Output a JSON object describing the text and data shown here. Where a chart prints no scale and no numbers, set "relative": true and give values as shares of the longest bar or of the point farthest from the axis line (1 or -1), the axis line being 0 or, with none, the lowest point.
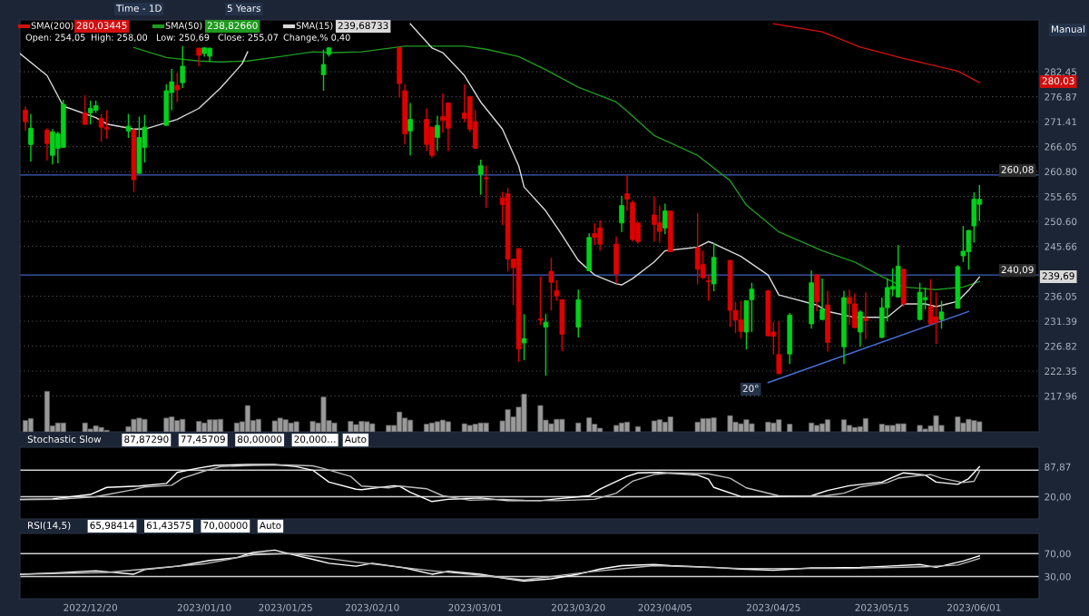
{
  "chart_data": [
    {
      "type": "candlestick",
      "log": true,
      "grid": "y",
      "legend": "top left",
      "tick_labels": "y",
      "xlim": [
        "2022-12-07",
        "2023-06-13"
      ],
      "ylim": [
        211.8,
        294.4
      ],
      "yticks": [
        282.45,
        276.87,
        271.41,
        266.05,
        {
          "value": 260.8,
          "label": "260.80"
        },
        255.65,
        {
          "value": 250.6,
          "label": "250.60"
        },
        245.66,
        236.05,
        231.39,
        226.82,
        222.35,
        217.96
      ],
      "x": [
        "2022-12-08",
        "2022-12-09",
        "2022-12-12",
        "2022-12-13",
        "2022-12-14",
        "2022-12-15",
        "2022-12-19",
        "2022-12-20",
        "2022-12-21",
        "2022-12-22",
        "2022-12-23",
        "2022-12-27",
        "2022-12-28",
        "2022-12-29",
        "2022-12-30",
        "2023-01-03",
        "2023-01-04",
        "2023-01-05",
        "2023-01-06",
        "2023-01-09",
        "2023-01-10",
        "2023-01-11",
        "2023-02-01",
        "2023-02-02",
        "2023-02-15",
        "2023-02-16",
        "2023-02-17",
        "2023-02-20",
        "2023-02-21",
        "2023-02-22",
        "2023-02-23",
        "2023-02-24",
        "2023-02-27",
        "2023-02-28",
        "2023-03-01",
        "2023-03-02",
        "2023-03-03",
        "2023-03-06",
        "2023-03-07",
        "2023-03-08",
        "2023-03-09",
        "2023-03-10",
        "2023-03-13",
        "2023-03-14",
        "2023-03-15",
        "2023-03-16",
        "2023-03-17",
        "2023-03-20",
        "2023-03-22",
        "2023-03-23",
        "2023-03-24",
        "2023-03-27",
        "2023-03-28",
        "2023-03-29",
        "2023-03-30",
        "2023-03-31",
        "2023-04-03",
        "2023-04-04",
        "2023-04-05",
        "2023-04-06",
        "2023-04-11",
        "2023-04-12",
        "2023-04-13",
        "2023-04-14",
        "2023-04-17",
        "2023-04-18",
        "2023-04-19",
        "2023-04-20",
        "2023-04-21",
        "2023-04-24",
        "2023-04-25",
        "2023-04-26",
        "2023-04-28",
        "2023-05-02",
        "2023-05-03",
        "2023-05-04",
        "2023-05-05",
        "2023-05-08",
        "2023-05-09",
        "2023-05-10",
        "2023-05-11",
        "2023-05-12",
        "2023-05-15",
        "2023-05-16",
        "2023-05-17",
        "2023-05-18",
        "2023-05-19",
        "2023-05-22",
        "2023-05-23",
        "2023-05-24",
        "2023-05-25",
        "2023-05-26",
        "2023-05-29",
        "2023-05-30",
        "2023-05-31",
        "2023-06-01",
        "2023-06-02"
      ],
      "ohlc": [
        [
          273.9,
          274.7,
          269.4,
          271.4
        ],
        [
          266.5,
          273.1,
          262.9,
          270.0
        ],
        [
          269.6,
          270.0,
          263.1,
          266.7
        ],
        [
          264.2,
          269.8,
          262.3,
          269.2
        ],
        [
          265.7,
          269.2,
          262.5,
          268.8
        ],
        [
          265.9,
          276.2,
          265.9,
          275.2
        ],
        [
          273.3,
          277.2,
          270.8,
          270.8
        ],
        [
          273.3,
          276.0,
          270.8,
          274.3
        ],
        [
          273.9,
          276.0,
          273.3,
          274.9
        ],
        [
          272.1,
          273.1,
          267.1,
          270.2
        ],
        [
          270.2,
          273.9,
          267.7,
          269.8
        ],
        [
          269.4,
          273.1,
          267.9,
          270.4
        ],
        [
          269.6,
          270.0,
          256.6,
          259.1
        ],
        [
          260.4,
          272.5,
          260.4,
          268.0
        ],
        [
          265.9,
          272.9,
          262.7,
          270.2
        ],
        [
          270.6,
          279.6,
          270.6,
          278.2
        ],
        [
          277.8,
          283.1,
          273.9,
          280.2
        ],
        [
          279.4,
          282.2,
          275.7,
          278.4
        ],
        [
          280.0,
          288.3,
          278.8,
          283.7
        ],
        [
          287.8,
          288.0,
          283.7,
          286.2
        ],
        [
          286.6,
          288.0,
          285.9,
          287.9
        ],
        [
          286.0,
          288.0,
          284.7,
          287.8
        ],
        [
          281.8,
          287.5,
          278.2,
          284.1
        ],
        [
          286.4,
          288.0,
          285.9,
          287.9
        ],
        [
          288.0,
          288.0,
          276.7,
          279.8
        ],
        [
          278.2,
          279.6,
          266.5,
          268.8
        ],
        [
          269.4,
          275.5,
          264.2,
          271.9
        ],
        [
          271.9,
          274.3,
          265.1,
          266.5
        ],
        [
          270.2,
          270.3,
          263.7,
          264.2
        ],
        [
          268.0,
          272.7,
          265.1,
          270.6
        ],
        [
          272.5,
          277.6,
          269.0,
          271.7
        ],
        [
          275.5,
          275.6,
          265.1,
          270.0
        ],
        [
          273.3,
          279.6,
          271.3,
          272.1
        ],
        [
          276.9,
          277.1,
          269.2,
          269.8
        ],
        [
          271.4,
          273.9,
          265.5,
          265.7
        ],
        [
          260.2,
          263.3,
          256.0,
          262.0
        ],
        [
          259.5,
          262.0,
          253.3,
          259.3
        ],
        [
          255.3,
          256.6,
          249.9,
          254.0
        ],
        [
          256.2,
          257.4,
          240.8,
          243.2
        ],
        [
          243.2,
          243.3,
          234.4,
          241.5
        ],
        [
          245.2,
          245.3,
          224.0,
          226.3
        ],
        [
          227.4,
          232.7,
          224.3,
          228.2
        ],
        [
          231.8,
          239.8,
          230.7,
          231.6
        ],
        [
          230.3,
          232.7,
          221.5,
          231.2
        ],
        [
          240.8,
          243.4,
          233.4,
          238.7
        ],
        [
          237.1,
          239.1,
          235.2,
          236.1
        ],
        [
          235.4,
          235.5,
          225.9,
          229.0
        ],
        [
          230.3,
          237.3,
          228.4,
          235.4
        ],
        [
          240.9,
          248.2,
          240.8,
          247.4
        ],
        [
          248.2,
          250.2,
          245.9,
          247.4
        ],
        [
          249.3,
          250.8,
          244.8,
          246.1
        ],
        [
          246.1,
          247.6,
          238.5,
          240.3
        ],
        [
          250.3,
          255.8,
          248.5,
          253.8
        ],
        [
          256.2,
          260.0,
          252.7,
          255.1
        ],
        [
          254.4,
          254.9,
          246.6,
          247.0
        ],
        [
          250.3,
          250.3,
          246.2,
          246.6
        ],
        [
          251.9,
          255.6,
          246.6,
          250.0
        ],
        [
          250.3,
          253.8,
          246.4,
          248.6
        ],
        [
          249.3,
          254.2,
          248.1,
          252.7
        ],
        [
          252.7,
          252.8,
          244.5,
          244.6
        ],
        [
          245.4,
          252.3,
          238.3,
          241.2
        ],
        [
          242.1,
          244.8,
          239.3,
          239.6
        ],
        [
          239.0,
          240.1,
          235.2,
          238.8
        ],
        [
          238.4,
          246.4,
          237.0,
          243.5
        ],
        [
          242.9,
          243.0,
          230.3,
          233.4
        ],
        [
          233.4,
          235.0,
          229.2,
          231.6
        ],
        [
          231.6,
          235.2,
          228.2,
          229.5
        ],
        [
          229.4,
          235.3,
          226.2,
          235.2
        ],
        [
          235.4,
          238.6,
          229.4,
          237.4
        ],
        [
          237.1,
          237.2,
          228.6,
          228.7
        ],
        [
          229.4,
          231.2,
          225.3,
          228.6
        ],
        [
          225.3,
          231.4,
          221.8,
          221.9
        ],
        [
          225.4,
          232.9,
          223.6,
          232.5
        ],
        [
          230.9,
          241.0,
          230.0,
          238.6
        ],
        [
          240.1,
          240.2,
          233.2,
          235.0
        ],
        [
          231.7,
          239.4,
          231.6,
          233.6
        ],
        [
          234.4,
          237.1,
          225.9,
          227.5
        ],
        [
          226.7,
          237.1,
          223.6,
          235.8
        ],
        [
          235.8,
          237.3,
          230.7,
          234.7
        ],
        [
          234.6,
          236.6,
          230.1,
          230.2
        ],
        [
          229.4,
          233.4,
          226.7,
          233.1
        ],
        [
          232.0,
          236.8,
          228.1,
          231.5
        ],
        [
          228.4,
          235.8,
          228.3,
          233.9
        ],
        [
          233.9,
          239.4,
          231.4,
          237.7
        ],
        [
          237.4,
          241.4,
          236.05,
          237.9
        ],
        [
          235.9,
          245.9,
          235.8,
          241.8
        ],
        [
          241.2,
          241.3,
          234.1,
          234.6
        ],
        [
          231.7,
          238.6,
          231.6,
          236.8
        ],
        [
          235.4,
          237.7,
          233.6,
          235.8
        ],
        [
          234.1,
          239.3,
          230.8,
          230.9
        ],
        [
          232.2,
          236.8,
          227.2,
          231.2
        ],
        [
          231.7,
          235.2,
          230.0,
          233.1
        ],
        [
          233.8,
          242.0,
          233.7,
          241.7
        ],
        [
          243.8,
          249.7,
          242.6,
          244.7
        ],
        [
          244.6,
          248.9,
          241.1,
          248.8
        ],
        [
          249.7,
          256.5,
          246.4,
          255.1
        ],
        [
          254.05,
          258.0,
          250.69,
          255.07
        ]
      ],
      "series": [
        {
          "type": "line",
          "name": "SMA(200)",
          "color": "#d01010",
          "x": [
            "2023-04-25",
            "2023-05-04",
            "2023-05-11",
            "2023-05-19",
            "2023-05-29",
            "2023-06-02"
          ],
          "values": [
            293.5,
            291.6,
            288.1,
            285.5,
            282.6,
            280.03
          ]
        },
        {
          "type": "line",
          "name": "SMA(50)",
          "color": "#1f9a1f",
          "x": [
            "2022-12-28",
            "2023-01-03",
            "2023-01-09",
            "2023-01-13",
            "2023-01-18",
            "2023-01-24",
            "2023-01-30",
            "2023-02-03",
            "2023-02-08",
            "2023-02-16",
            "2023-02-27",
            "2023-03-03",
            "2023-03-09",
            "2023-03-14",
            "2023-03-20",
            "2023-03-27",
            "2023-03-29",
            "2023-04-03",
            "2023-04-11",
            "2023-04-17",
            "2023-04-20",
            "2023-04-26",
            "2023-05-04",
            "2023-05-10",
            "2023-05-15",
            "2023-05-19",
            "2023-05-25",
            "2023-05-30",
            "2023-06-02"
          ],
          "values": [
            288.0,
            285.7,
            284.9,
            284.7,
            284.9,
            285.9,
            287.0,
            286.8,
            287.0,
            288.3,
            288.3,
            287.6,
            285.9,
            282.9,
            279.0,
            275.7,
            273.7,
            268.4,
            264.2,
            258.9,
            253.9,
            248.5,
            244.8,
            242.6,
            239.8,
            237.8,
            237.3,
            237.8,
            238.83
          ]
        },
        {
          "type": "line",
          "name": "SMA(15)",
          "color": "#d9d9d9",
          "x": [
            "2022-12-07",
            "2022-12-12",
            "2022-12-15",
            "2022-12-21",
            "2022-12-23",
            "2022-12-28",
            "2022-12-30",
            "2023-01-05",
            "2023-01-09",
            "2023-01-13",
            "2023-01-17",
            "2023-01-18",
            "2023-02-02",
            "2023-02-17",
            "2023-02-21",
            "2023-02-23",
            "2023-02-27",
            "2023-03-02",
            "2023-03-06",
            "2023-03-09",
            "2023-03-10",
            "2023-03-14",
            "2023-03-17",
            "2023-03-20",
            "2023-03-23",
            "2023-03-27",
            "2023-03-28",
            "2023-03-30",
            "2023-04-03",
            "2023-04-05",
            "2023-04-11",
            "2023-04-13",
            "2023-04-14",
            "2023-04-19",
            "2023-04-24",
            "2023-04-26",
            "2023-05-03",
            "2023-05-05",
            "2023-05-10",
            "2023-05-16",
            "2023-05-19",
            "2023-05-23",
            "2023-05-25",
            "2023-05-29",
            "2023-05-31",
            "2023-06-02"
          ],
          "values": [
            286.6,
            281.6,
            274.8,
            272.3,
            270.9,
            269.8,
            269.8,
            271.9,
            274.3,
            278.8,
            284.3,
            287.0,
            null,
            293.5,
            287.9,
            286.8,
            281.6,
            275.7,
            269.8,
            262.0,
            257.6,
            252.7,
            247.9,
            242.9,
            240.1,
            238.4,
            238.2,
            239.4,
            242.6,
            244.8,
            245.5,
            246.6,
            246.2,
            243.7,
            240.1,
            236.3,
            234.4,
            233.2,
            232.1,
            232.1,
            234.6,
            234.6,
            234.1,
            235.1,
            237.2,
            239.69
          ]
        },
        {
          "type": "line",
          "color": "#4a6fd8",
          "x": [
            "2023-04-24",
            "2023-05-31"
          ],
          "values": [
            220.3,
            233.2
          ]
        }
      ],
      "ref_lines": [
        {
          "axis": "y",
          "value": 260.08,
          "label": "260,08",
          "color": "#4060c0"
        },
        {
          "axis": "y",
          "value": 240.09,
          "label": "240,09",
          "color": "#4060c0"
        }
      ],
      "annotations": [
        "Time - 1D",
        "5 Years",
        "Manual",
        "Open: 254,05",
        "High: 258,00",
        "Low: 250,69",
        "Close: 255,07",
        "Change,% 0,40",
        "280,03445",
        "238,82660",
        "239,68733",
        "20°",
        "280,03",
        "239,69"
      ]
    },
    {
      "type": "bar",
      "relative": true,
      "tick_labels": false,
      "color": "#9a9a9a",
      "xlim": [
        "2022-12-07",
        "2023-06-13"
      ],
      "x": [
        "2022-12-08",
        "2022-12-09",
        "2022-12-12",
        "2022-12-13",
        "2022-12-14",
        "2022-12-15",
        "2022-12-19",
        "2022-12-20",
        "2022-12-21",
        "2022-12-22",
        "2022-12-23",
        "2022-12-27",
        "2022-12-28",
        "2022-12-29",
        "2022-12-30",
        "2023-01-03",
        "2023-01-04",
        "2023-01-05",
        "2023-01-06",
        "2023-01-09",
        "2023-01-10",
        "2023-01-11",
        "2023-01-12",
        "2023-01-13",
        "2023-01-16",
        "2023-01-17",
        "2023-01-18",
        "2023-01-19",
        "2023-01-20",
        "2023-01-23",
        "2023-01-24",
        "2023-01-25",
        "2023-01-26",
        "2023-01-27",
        "2023-01-30",
        "2023-01-31",
        "2023-02-01",
        "2023-02-02",
        "2023-02-03",
        "2023-02-06",
        "2023-02-07",
        "2023-02-08",
        "2023-02-09",
        "2023-02-10",
        "2023-02-13",
        "2023-02-14",
        "2023-02-15",
        "2023-02-16",
        "2023-02-17",
        "2023-02-20",
        "2023-02-21",
        "2023-02-22",
        "2023-02-23",
        "2023-02-24",
        "2023-02-27",
        "2023-02-28",
        "2023-03-01",
        "2023-03-02",
        "2023-03-03",
        "2023-03-06",
        "2023-03-07",
        "2023-03-08",
        "2023-03-09",
        "2023-03-10",
        "2023-03-13",
        "2023-03-14",
        "2023-03-15",
        "2023-03-16",
        "2023-03-17",
        "2023-03-20",
        "2023-03-22",
        "2023-03-23",
        "2023-03-24",
        "2023-03-27",
        "2023-03-28",
        "2023-03-29",
        "2023-03-30",
        "2023-03-31",
        "2023-04-03",
        "2023-04-04",
        "2023-04-05",
        "2023-04-06",
        "2023-04-11",
        "2023-04-12",
        "2023-04-13",
        "2023-04-14",
        "2023-04-17",
        "2023-04-18",
        "2023-04-19",
        "2023-04-20",
        "2023-04-21",
        "2023-04-24",
        "2023-04-25",
        "2023-04-26",
        "2023-04-28",
        "2023-05-02",
        "2023-05-03",
        "2023-05-04",
        "2023-05-05",
        "2023-05-08",
        "2023-05-09",
        "2023-05-10",
        "2023-05-11",
        "2023-05-12",
        "2023-05-15",
        "2023-05-16",
        "2023-05-17",
        "2023-05-18",
        "2023-05-19",
        "2023-05-22",
        "2023-05-23",
        "2023-05-24",
        "2023-05-25",
        "2023-05-26",
        "2023-05-29",
        "2023-05-30",
        "2023-05-31",
        "2023-06-01",
        "2023-06-02"
      ],
      "values": [
        0.28,
        0.33,
        1,
        0.15,
        0.22,
        0.22,
        0.22,
        0.07,
        0.15,
        0.11,
        0.04,
        0.13,
        0.31,
        0.34,
        0.31,
        0.34,
        0.37,
        0.28,
        0.31,
        0.26,
        0.22,
        0.3,
        0.3,
        0.31,
        0.22,
        0.25,
        0.65,
        0.28,
        0.31,
        0.27,
        0.34,
        0.3,
        0.22,
        0.25,
        0.26,
        0.22,
        0.86,
        0.28,
        0.22,
        0.26,
        0.18,
        0.26,
        0.25,
        0.2,
        0.16,
        0.16,
        0.49,
        0.34,
        0.29,
        0.19,
        0.22,
        0.25,
        0.29,
        0.25,
        0.2,
        0.16,
        0.19,
        0.22,
        0.22,
        0.27,
        0.55,
        0.37,
        0.61,
        0.93,
        0.65,
        0.29,
        0.2,
        0.31,
        0.31,
        0.22,
        0.35,
        0.19,
        0.09,
        0.16,
        0.22,
        0.24,
        null,
        0.13,
        0.27,
        0.3,
        0.24,
        0.37,
        0.24,
        0.33,
        0.33,
        0.35,
        0.4,
        0.24,
        0.2,
        0.3,
        0.2,
        0.24,
        0.22,
        0.3,
        0.19,
        0.22,
        0.16,
        0.2,
        0.3,
        0.3,
        0.16,
        0.11,
        0.13,
        0.33,
        0.19,
        0.16,
        0.16,
        0.2,
        0.2,
        0.16,
        0.07,
        0.15,
        0.4,
        0.16,
        0.37,
        0.22,
        0.31,
        0.28,
        0.25
      ]
    },
    {
      "type": "line",
      "tick_labels": "y",
      "xlim": [
        "2022-12-07",
        "2023-06-13"
      ],
      "ylim": [
        -30.5,
        132.1
      ],
      "yticks": [
        {
          "value": 87.87,
          "label": "87,87"
        },
        {
          "value": 20,
          "label": "20,00"
        }
      ],
      "series": [
        {
          "color": "#ffffff",
          "x": [
            "2022-12-07",
            "2022-12-13",
            "2022-12-20",
            "2022-12-23",
            "2022-12-29",
            "2023-01-03",
            "2023-01-05",
            "2023-01-09",
            "2023-01-12",
            "2023-01-18",
            "2023-01-23",
            "2023-01-27",
            "2023-01-30",
            "2023-02-02",
            "2023-02-07",
            "2023-02-08",
            "2023-02-14",
            "2023-02-15",
            "2023-02-17",
            "2023-02-21",
            "2023-02-24",
            "2023-03-02",
            "2023-03-07",
            "2023-03-13",
            "2023-03-16",
            "2023-03-22",
            "2023-03-24",
            "2023-03-29",
            "2023-03-31",
            "2023-04-04",
            "2023-04-11",
            "2023-04-13",
            "2023-04-14",
            "2023-04-19",
            "2023-04-24",
            "2023-05-02",
            "2023-05-05",
            "2023-05-09",
            "2023-05-15",
            "2023-05-17",
            "2023-05-19",
            "2023-05-23",
            "2023-05-25",
            "2023-05-29",
            "2023-05-31",
            "2023-06-02"
          ],
          "values": [
            14,
            15,
            25,
            41,
            44,
            50,
            75,
            85,
            91,
            93,
            93,
            88,
            80,
            53,
            37,
            36,
            45,
            44,
            30,
            9,
            14,
            17,
            11,
            11,
            15,
            22,
            37,
            66,
            74,
            75,
            69,
            60,
            41,
            20,
            20,
            22,
            34,
            45,
            53,
            64,
            74,
            69,
            53,
            48,
            61,
            87.87
          ]
        },
        {
          "color": "#bdbdbd",
          "x": [
            "2022-12-07",
            "2022-12-14",
            "2022-12-21",
            "2022-12-28",
            "2022-12-30",
            "2023-01-04",
            "2023-01-06",
            "2023-01-10",
            "2023-01-13",
            "2023-01-19",
            "2023-01-25",
            "2023-01-30",
            "2023-02-01",
            "2023-02-06",
            "2023-02-08",
            "2023-02-13",
            "2023-02-15",
            "2023-02-20",
            "2023-02-23",
            "2023-02-28",
            "2023-03-06",
            "2023-03-10",
            "2023-03-16",
            "2023-03-23",
            "2023-03-27",
            "2023-03-30",
            "2023-04-03",
            "2023-04-06",
            "2023-04-13",
            "2023-04-17",
            "2023-04-20",
            "2023-04-26",
            "2023-05-04",
            "2023-05-08",
            "2023-05-11",
            "2023-05-16",
            "2023-05-18",
            "2023-05-22",
            "2023-05-24",
            "2023-05-26",
            "2023-05-30",
            "2023-06-01",
            "2023-06-02"
          ],
          "values": [
            13,
            14,
            20,
            36,
            42,
            46,
            62,
            78,
            88,
            91,
            92,
            90,
            84,
            66,
            44,
            40,
            44,
            38,
            22,
            12,
            14,
            12,
            11,
            14,
            28,
            55,
            70,
            74,
            72,
            62,
            40,
            22,
            21,
            28,
            42,
            52,
            62,
            68,
            70,
            62,
            52,
            55,
            77.46
          ]
        }
      ],
      "ref_lines": [
        {
          "axis": "y",
          "value": 80,
          "color": "#d0d0d0"
        },
        {
          "axis": "y",
          "value": 20,
          "color": "#d0d0d0"
        }
      ],
      "annotations": [
        "Stochastic Slow",
        "87,87290",
        "77,45709",
        "80,00000",
        "20,000…",
        "Auto"
      ]
    },
    {
      "type": "line",
      "xlim": [
        "2022-12-07",
        "2023-06-13"
      ],
      "ylim": [
        -8.8,
        105.1
      ],
      "yticks": [
        {
          "value": 70,
          "label": "70,00"
        },
        {
          "value": 30,
          "label": "30,00"
        }
      ],
      "xticks": [
        {
          "value": "2022-12-20",
          "label": "2022/12/20"
        },
        {
          "value": "2023-01-10",
          "label": "2023/01/10"
        },
        {
          "value": "2023-01-25",
          "label": "2023/01/25"
        },
        {
          "value": "2023-02-10",
          "label": "2023/02/10"
        },
        {
          "value": "2023-03-01",
          "label": "2023/03/01"
        },
        {
          "value": "2023-03-20",
          "label": "2023/03/20"
        },
        {
          "value": "2023-04-05",
          "label": "2023/04/05"
        },
        {
          "value": "2023-04-25",
          "label": "2023/04/25"
        },
        {
          "value": "2023-05-15",
          "label": "2023/05/15"
        },
        {
          "value": "2023-06-01",
          "label": "2023/06/01"
        }
      ],
      "series": [
        {
          "color": "#ffffff",
          "x": [
            "2022-12-07",
            "2022-12-13",
            "2022-12-21",
            "2022-12-28",
            "2022-12-30",
            "2023-01-05",
            "2023-01-11",
            "2023-01-16",
            "2023-01-19",
            "2023-01-23",
            "2023-01-26",
            "2023-01-30",
            "2023-02-02",
            "2023-02-07",
            "2023-02-10",
            "2023-02-16",
            "2023-02-21",
            "2023-02-24",
            "2023-03-02",
            "2023-03-07",
            "2023-03-10",
            "2023-03-15",
            "2023-03-20",
            "2023-03-24",
            "2023-03-28",
            "2023-04-03",
            "2023-04-06",
            "2023-04-14",
            "2023-04-19",
            "2023-04-25",
            "2023-05-02",
            "2023-05-05",
            "2023-05-11",
            "2023-05-16",
            "2023-05-22",
            "2023-05-25",
            "2023-05-30",
            "2023-06-01",
            "2023-06-02"
          ],
          "values": [
            34,
            36,
            40,
            34,
            42,
            48,
            58,
            63,
            72,
            76,
            69,
            60,
            53,
            48,
            53,
            45,
            34,
            39,
            34,
            26,
            22,
            26,
            34,
            43,
            49,
            51,
            49,
            46,
            43,
            41,
            45,
            45,
            46,
            48,
            51,
            46,
            57,
            63,
            65.98
          ]
        },
        {
          "color": "#bdbdbd",
          "x": [
            "2022-12-07",
            "2022-12-23",
            "2023-01-10",
            "2023-01-19",
            "2023-01-26",
            "2023-02-07",
            "2023-02-21",
            "2023-03-02",
            "2023-03-10",
            "2023-03-22",
            "2023-04-03",
            "2023-04-19",
            "2023-05-09",
            "2023-05-23",
            "2023-05-29",
            "2023-06-02"
          ],
          "values": [
            34,
            37,
            52,
            68,
            70,
            55,
            40,
            32,
            24,
            38,
            49,
            44,
            44,
            47,
            50,
            61.44
          ]
        }
      ],
      "ref_lines": [
        {
          "axis": "y",
          "value": 70,
          "color": "#d0d0d0"
        },
        {
          "axis": "y",
          "value": 30,
          "color": "#d0d0d0"
        }
      ],
      "annotations": [
        "RSI(14,5)",
        "65,98414",
        "61,43575",
        "70,00000",
        "Auto"
      ]
    }
  ]
}
